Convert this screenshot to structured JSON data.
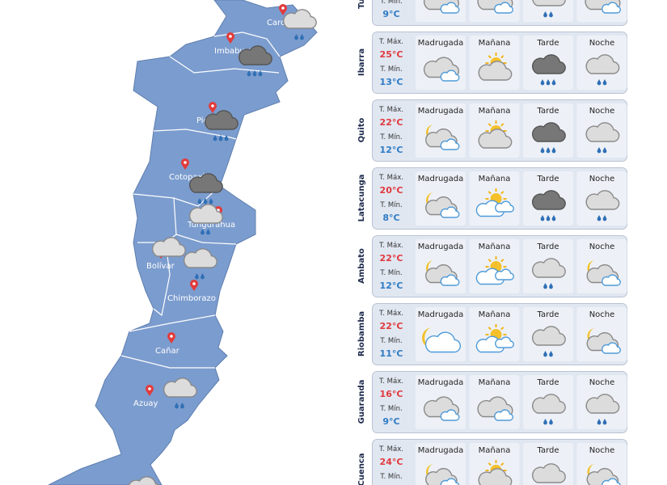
{
  "map": {
    "provinces": [
      "Carchi",
      "Imbabura",
      "Pichincha",
      "Cotopaxi",
      "Tungurahua",
      "Bolívar",
      "Chimborazo",
      "Cañar",
      "Azuay"
    ]
  },
  "forecast": {
    "labels": {
      "max": "T. Máx.",
      "min": "T. Mín."
    },
    "periods": [
      "Madrugada",
      "Mañana",
      "Tarde",
      "Noche"
    ],
    "cities": [
      {
        "name": "Tulcán",
        "min": "9°C"
      },
      {
        "name": "Ibarra",
        "max": "25°C",
        "min": "13°C"
      },
      {
        "name": "Quito",
        "max": "22°C",
        "min": "12°C"
      },
      {
        "name": "Latacunga",
        "max": "20°C",
        "min": "8°C"
      },
      {
        "name": "Ambato",
        "max": "22°C",
        "min": "12°C"
      },
      {
        "name": "Riobamba",
        "max": "22°C",
        "min": "11°C"
      },
      {
        "name": "Guaranda",
        "max": "16°C",
        "min": "9°C"
      },
      {
        "name": "Cuenca",
        "max": "24°C"
      }
    ]
  }
}
